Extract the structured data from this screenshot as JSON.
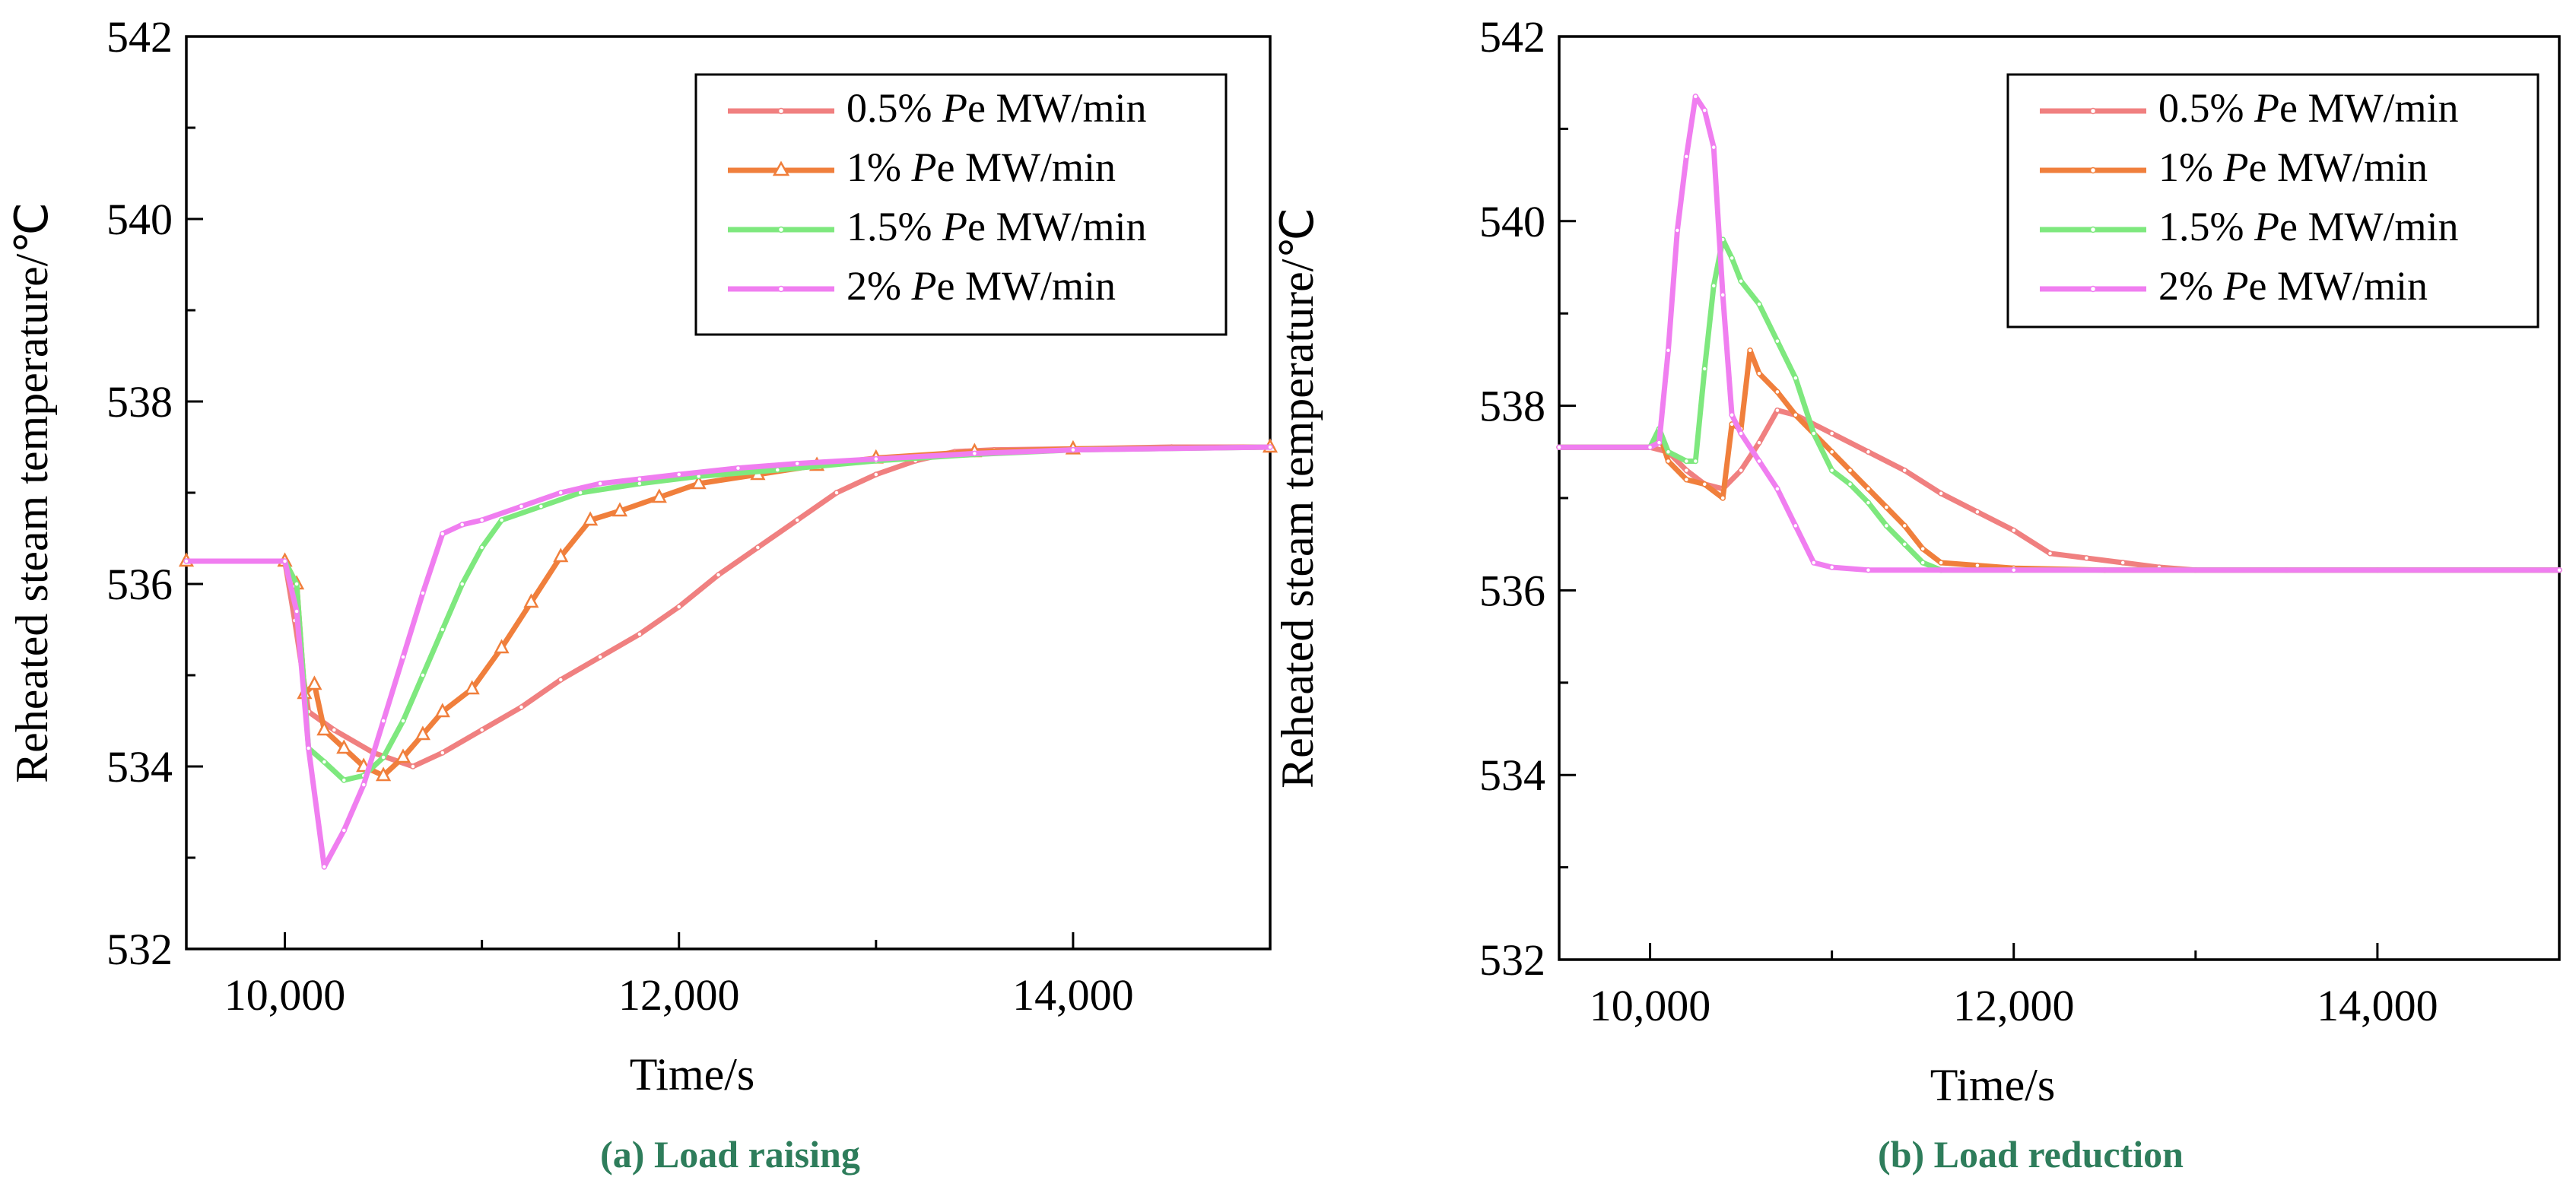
{
  "chart_data": [
    {
      "type": "line",
      "title": "",
      "caption": "(a) Load raising",
      "xlabel": "Time/s",
      "ylabel": "Reheated steam temperature/℃",
      "xlim": [
        9500,
        15000
      ],
      "ylim": [
        532,
        542
      ],
      "xticks": [
        10000,
        12000,
        14000
      ],
      "xtick_labels": [
        "10,000",
        "12,000",
        "14,000"
      ],
      "yticks": [
        532,
        534,
        536,
        538,
        540,
        542
      ],
      "ytick_labels": [
        "532",
        "534",
        "536",
        "538",
        "540",
        "542"
      ],
      "grid": false,
      "legend_position": "top-right",
      "series": [
        {
          "name": "0.5% Pe MW/min",
          "legend_prefix": "0.5% ",
          "legend_italic": "P",
          "legend_suffix": "e MW/min",
          "color": "#f08080",
          "marker": "dot",
          "points": [
            [
              9500,
              536.25
            ],
            [
              10000,
              536.25
            ],
            [
              10050,
              535.6
            ],
            [
              10120,
              534.6
            ],
            [
              10250,
              534.4
            ],
            [
              10450,
              534.15
            ],
            [
              10650,
              534.0
            ],
            [
              10800,
              534.15
            ],
            [
              11000,
              534.4
            ],
            [
              11200,
              534.65
            ],
            [
              11400,
              534.95
            ],
            [
              11600,
              535.2
            ],
            [
              11800,
              535.45
            ],
            [
              12000,
              535.75
            ],
            [
              12200,
              536.1
            ],
            [
              12400,
              536.4
            ],
            [
              12600,
              536.7
            ],
            [
              12800,
              537.0
            ],
            [
              13000,
              537.2
            ],
            [
              13200,
              537.35
            ],
            [
              13400,
              537.45
            ],
            [
              13600,
              537.47
            ],
            [
              14000,
              537.48
            ],
            [
              14500,
              537.5
            ],
            [
              15000,
              537.5
            ]
          ]
        },
        {
          "name": "1% Pe MW/min",
          "legend_prefix": "1% ",
          "legend_italic": "P",
          "legend_suffix": "e MW/min",
          "color": "#f07f3c",
          "marker": "triangle",
          "points": [
            [
              9500,
              536.25
            ],
            [
              10000,
              536.25
            ],
            [
              10060,
              536.0
            ],
            [
              10100,
              534.8
            ],
            [
              10150,
              534.9
            ],
            [
              10200,
              534.4
            ],
            [
              10300,
              534.2
            ],
            [
              10400,
              534.0
            ],
            [
              10500,
              533.9
            ],
            [
              10600,
              534.1
            ],
            [
              10700,
              534.35
            ],
            [
              10800,
              534.6
            ],
            [
              10950,
              534.85
            ],
            [
              11100,
              535.3
            ],
            [
              11250,
              535.8
            ],
            [
              11400,
              536.3
            ],
            [
              11550,
              536.7
            ],
            [
              11700,
              536.8
            ],
            [
              11900,
              536.95
            ],
            [
              12100,
              537.1
            ],
            [
              12400,
              537.2
            ],
            [
              12700,
              537.3
            ],
            [
              13000,
              537.38
            ],
            [
              13500,
              537.45
            ],
            [
              14000,
              537.48
            ],
            [
              15000,
              537.5
            ]
          ]
        },
        {
          "name": "1.5% Pe MW/min",
          "legend_prefix": "1.5% ",
          "legend_italic": "P",
          "legend_suffix": "e MW/min",
          "color": "#7ee87e",
          "marker": "dot",
          "points": [
            [
              9500,
              536.25
            ],
            [
              10000,
              536.25
            ],
            [
              10060,
              536.0
            ],
            [
              10120,
              534.2
            ],
            [
              10200,
              534.05
            ],
            [
              10300,
              533.85
            ],
            [
              10400,
              533.9
            ],
            [
              10500,
              534.1
            ],
            [
              10600,
              534.5
            ],
            [
              10700,
              535.0
            ],
            [
              10800,
              535.5
            ],
            [
              10900,
              536.0
            ],
            [
              11000,
              536.4
            ],
            [
              11100,
              536.7
            ],
            [
              11300,
              536.85
            ],
            [
              11500,
              537.0
            ],
            [
              11800,
              537.1
            ],
            [
              12100,
              537.18
            ],
            [
              12500,
              537.25
            ],
            [
              13000,
              537.35
            ],
            [
              13500,
              537.42
            ],
            [
              14000,
              537.47
            ],
            [
              15000,
              537.5
            ]
          ]
        },
        {
          "name": "2% Pe MW/min",
          "legend_prefix": "2% ",
          "legend_italic": "P",
          "legend_suffix": "e MW/min",
          "color": "#f07ef0",
          "marker": "dot",
          "points": [
            [
              9500,
              536.25
            ],
            [
              10000,
              536.25
            ],
            [
              10060,
              535.7
            ],
            [
              10120,
              534.2
            ],
            [
              10200,
              532.9
            ],
            [
              10300,
              533.3
            ],
            [
              10400,
              533.8
            ],
            [
              10500,
              534.5
            ],
            [
              10600,
              535.2
            ],
            [
              10700,
              535.9
            ],
            [
              10800,
              536.55
            ],
            [
              10900,
              536.65
            ],
            [
              11000,
              536.7
            ],
            [
              11200,
              536.85
            ],
            [
              11400,
              537.0
            ],
            [
              11600,
              537.1
            ],
            [
              11800,
              537.15
            ],
            [
              12000,
              537.2
            ],
            [
              12300,
              537.27
            ],
            [
              12600,
              537.32
            ],
            [
              13000,
              537.37
            ],
            [
              13500,
              537.43
            ],
            [
              14000,
              537.47
            ],
            [
              15000,
              537.5
            ]
          ]
        }
      ]
    },
    {
      "type": "line",
      "title": "",
      "caption": "(b) Load reduction",
      "xlabel": "Time/s",
      "ylabel": "Reheated steam temperature/℃",
      "xlim": [
        9500,
        15000
      ],
      "ylim": [
        532,
        542
      ],
      "xticks": [
        10000,
        12000,
        14000
      ],
      "xtick_labels": [
        "10,000",
        "12,000",
        "14,000"
      ],
      "yticks": [
        532,
        534,
        536,
        538,
        540,
        542
      ],
      "ytick_labels": [
        "532",
        "534",
        "536",
        "538",
        "540",
        "542"
      ],
      "grid": false,
      "legend_position": "top-right",
      "series": [
        {
          "name": "0.5% Pe MW/min",
          "legend_prefix": "0.5% ",
          "legend_italic": "P",
          "legend_suffix": "e MW/min",
          "color": "#f08080",
          "marker": "dot",
          "points": [
            [
              9500,
              537.55
            ],
            [
              10000,
              537.55
            ],
            [
              10100,
              537.5
            ],
            [
              10200,
              537.3
            ],
            [
              10300,
              537.15
            ],
            [
              10400,
              537.1
            ],
            [
              10500,
              537.3
            ],
            [
              10600,
              537.6
            ],
            [
              10700,
              537.95
            ],
            [
              10800,
              537.9
            ],
            [
              11000,
              537.7
            ],
            [
              11200,
              537.5
            ],
            [
              11400,
              537.3
            ],
            [
              11600,
              537.05
            ],
            [
              11800,
              536.85
            ],
            [
              12000,
              536.65
            ],
            [
              12200,
              536.4
            ],
            [
              12400,
              536.35
            ],
            [
              12600,
              536.3
            ],
            [
              12800,
              536.25
            ],
            [
              13000,
              536.22
            ],
            [
              13500,
              536.22
            ],
            [
              14000,
              536.22
            ],
            [
              15000,
              536.22
            ]
          ]
        },
        {
          "name": "1% Pe MW/min",
          "legend_prefix": "1% ",
          "legend_italic": "P",
          "legend_suffix": "e MW/min",
          "color": "#f07f3c",
          "marker": "dot",
          "points": [
            [
              9500,
              537.55
            ],
            [
              10000,
              537.55
            ],
            [
              10050,
              537.7
            ],
            [
              10100,
              537.4
            ],
            [
              10200,
              537.2
            ],
            [
              10300,
              537.15
            ],
            [
              10400,
              537.0
            ],
            [
              10450,
              537.8
            ],
            [
              10500,
              537.75
            ],
            [
              10550,
              538.6
            ],
            [
              10600,
              538.35
            ],
            [
              10700,
              538.15
            ],
            [
              10800,
              537.9
            ],
            [
              10900,
              537.7
            ],
            [
              11000,
              537.5
            ],
            [
              11100,
              537.3
            ],
            [
              11200,
              537.1
            ],
            [
              11300,
              536.9
            ],
            [
              11400,
              536.7
            ],
            [
              11500,
              536.45
            ],
            [
              11600,
              536.3
            ],
            [
              11800,
              536.27
            ],
            [
              12000,
              536.24
            ],
            [
              12500,
              536.22
            ],
            [
              13000,
              536.22
            ],
            [
              15000,
              536.22
            ]
          ]
        },
        {
          "name": "1.5% Pe MW/min",
          "legend_prefix": "1.5% ",
          "legend_italic": "P",
          "legend_suffix": "e MW/min",
          "color": "#7ee87e",
          "marker": "dot",
          "points": [
            [
              9500,
              537.55
            ],
            [
              10000,
              537.55
            ],
            [
              10050,
              537.75
            ],
            [
              10100,
              537.5
            ],
            [
              10200,
              537.4
            ],
            [
              10250,
              537.4
            ],
            [
              10300,
              538.4
            ],
            [
              10350,
              539.3
            ],
            [
              10400,
              539.8
            ],
            [
              10450,
              539.6
            ],
            [
              10500,
              539.35
            ],
            [
              10600,
              539.1
            ],
            [
              10700,
              538.7
            ],
            [
              10800,
              538.3
            ],
            [
              10900,
              537.7
            ],
            [
              11000,
              537.3
            ],
            [
              11100,
              537.15
            ],
            [
              11200,
              536.95
            ],
            [
              11300,
              536.7
            ],
            [
              11400,
              536.5
            ],
            [
              11500,
              536.3
            ],
            [
              11600,
              536.22
            ],
            [
              12000,
              536.22
            ],
            [
              15000,
              536.22
            ]
          ]
        },
        {
          "name": "2% Pe MW/min",
          "legend_prefix": "2% ",
          "legend_italic": "P",
          "legend_suffix": "e MW/min",
          "color": "#f07ef0",
          "marker": "dot",
          "points": [
            [
              9500,
              537.55
            ],
            [
              10000,
              537.55
            ],
            [
              10050,
              537.6
            ],
            [
              10100,
              538.6
            ],
            [
              10150,
              539.9
            ],
            [
              10200,
              540.7
            ],
            [
              10250,
              541.35
            ],
            [
              10300,
              541.2
            ],
            [
              10350,
              540.8
            ],
            [
              10400,
              539.2
            ],
            [
              10450,
              537.9
            ],
            [
              10500,
              537.7
            ],
            [
              10600,
              537.4
            ],
            [
              10700,
              537.1
            ],
            [
              10800,
              536.7
            ],
            [
              10900,
              536.3
            ],
            [
              11000,
              536.25
            ],
            [
              11200,
              536.22
            ],
            [
              12000,
              536.22
            ],
            [
              15000,
              536.22
            ]
          ]
        }
      ]
    }
  ]
}
